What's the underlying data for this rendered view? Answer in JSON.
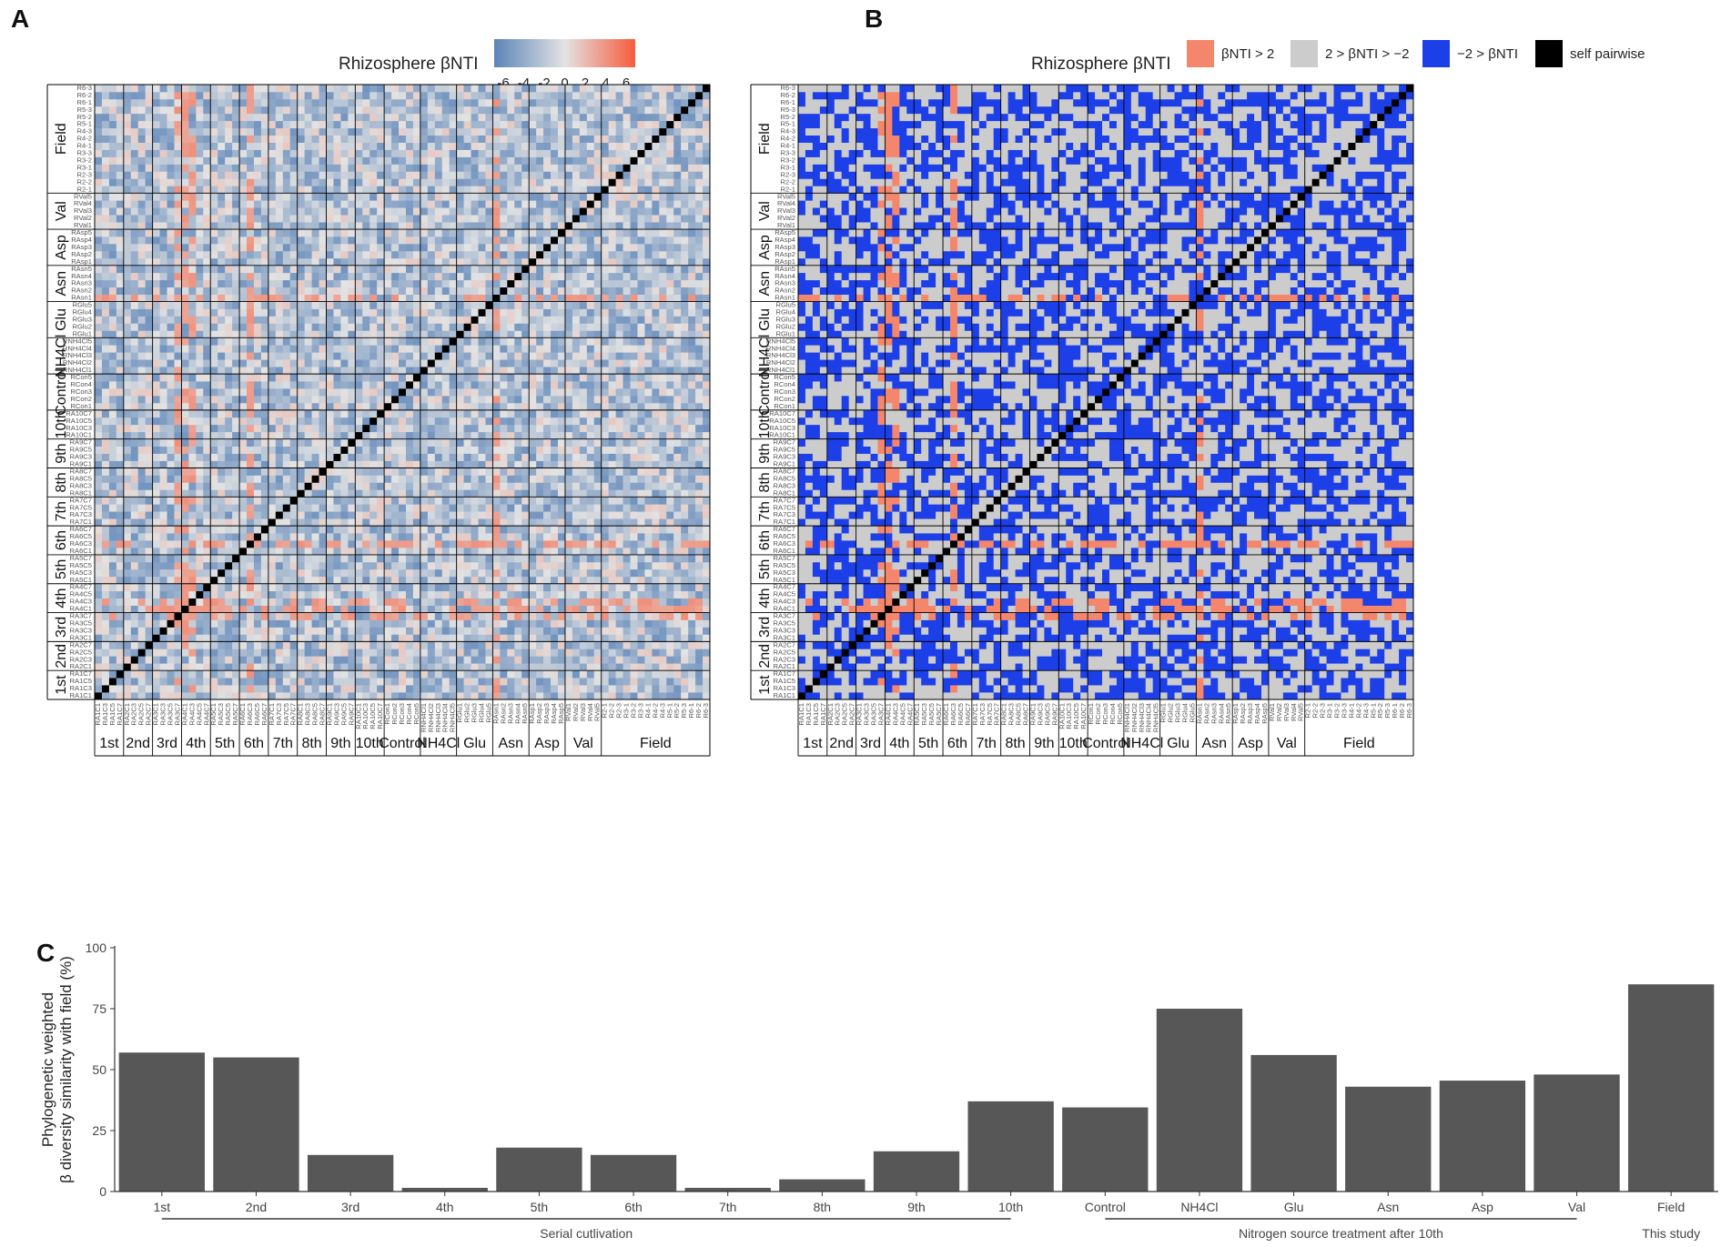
{
  "panels": {
    "a": {
      "letter": "A",
      "legend_title": "Rhizosphere βNTI",
      "legend_ticks": [
        "-6",
        "-4",
        "-2",
        "0",
        "2",
        "4",
        "6"
      ]
    },
    "b": {
      "letter": "B",
      "legend_title": "Rhizosphere βNTI",
      "legend_items": [
        {
          "label": "βNTI > 2",
          "color": "#f4866c"
        },
        {
          "label": "2 > βNTI > −2",
          "color": "#cccccc"
        },
        {
          "label": "−2 > βNTI",
          "color": "#1c3fe8"
        },
        {
          "label": "self pairwise",
          "color": "#000000"
        }
      ]
    },
    "c": {
      "letter": "C"
    }
  },
  "colors": {
    "low": "#5b84b8",
    "mid": "#e3e3e3",
    "high": "#f65c3c",
    "bar": "#575757",
    "self": "#000000"
  },
  "heatmap_groups": [
    {
      "label": "1st",
      "labels": [
        "RA1C1",
        "RA1C3",
        "RA1C5",
        "RA1C7"
      ]
    },
    {
      "label": "2nd",
      "labels": [
        "RA2C1",
        "RA2C3",
        "RA2C5",
        "RA2C7"
      ]
    },
    {
      "label": "3rd",
      "labels": [
        "RA3C1",
        "RA3C3",
        "RA3C5",
        "RA3C7"
      ]
    },
    {
      "label": "4th",
      "labels": [
        "RA4C1",
        "RA4C3",
        "RA4C5",
        "RA4C7"
      ]
    },
    {
      "label": "5th",
      "labels": [
        "RA5C1",
        "RA5C3",
        "RA5C5",
        "RA5C7"
      ]
    },
    {
      "label": "6th",
      "labels": [
        "RA6C1",
        "RA6C3",
        "RA6C5",
        "RA6C7"
      ]
    },
    {
      "label": "7th",
      "labels": [
        "RA7C1",
        "RA7C3",
        "RA7C5",
        "RA7C7"
      ]
    },
    {
      "label": "8th",
      "labels": [
        "RA8C1",
        "RA8C3",
        "RA8C5",
        "RA8C7"
      ]
    },
    {
      "label": "9th",
      "labels": [
        "RA9C1",
        "RA9C3",
        "RA9C5",
        "RA9C7"
      ]
    },
    {
      "label": "10th",
      "labels": [
        "RA10C1",
        "RA10C3",
        "RA10C5",
        "RA10C7"
      ]
    },
    {
      "label": "Control",
      "labels": [
        "RCon1",
        "RCon2",
        "RCon3",
        "RCon4",
        "RCon5"
      ]
    },
    {
      "label": "NH4Cl",
      "labels": [
        "RNH4Cl1",
        "RNH4Cl2",
        "RNH4Cl3",
        "RNH4Cl4",
        "RNH4Cl5"
      ]
    },
    {
      "label": "Glu",
      "labels": [
        "RGlu1",
        "RGlu2",
        "RGlu3",
        "RGlu4",
        "RGlu5"
      ]
    },
    {
      "label": "Asn",
      "labels": [
        "RAsn1",
        "RAsn2",
        "RAsn3",
        "RAsn4",
        "RAsn5"
      ]
    },
    {
      "label": "Asp",
      "labels": [
        "RAsp1",
        "RAsp2",
        "RAsp3",
        "RAsp4",
        "RAsp5"
      ]
    },
    {
      "label": "Val",
      "labels": [
        "RVal1",
        "RVal2",
        "RVal3",
        "RVal4",
        "RVal5"
      ]
    },
    {
      "label": "Field",
      "labels": [
        "R2-1",
        "R2-2",
        "R2-3",
        "R3-1",
        "R3-2",
        "R3-3",
        "R4-1",
        "R4-2",
        "R4-3",
        "R5-1",
        "R5-2",
        "R5-3",
        "R6-1",
        "R6-2",
        "R6-3"
      ]
    }
  ],
  "chart_data": [
    {
      "type": "heatmap",
      "panel": "A",
      "title": "Rhizosphere βNTI",
      "color_scale": {
        "min": -6,
        "max": 6,
        "ticks": [
          -6,
          -4,
          -2,
          0,
          2,
          4,
          6
        ]
      },
      "diagonal": "self pairwise (black)",
      "hotspots": [
        {
          "row": "RAsn1",
          "col": "RA6C3",
          "value": 6
        },
        {
          "row": "RA6C3",
          "col": "RAsn1",
          "value": 6
        },
        {
          "row": "RA4C1",
          "col": "RA4C3",
          "value": 3
        }
      ]
    },
    {
      "type": "heatmap",
      "panel": "B",
      "title": "Rhizosphere βNTI",
      "categories": [
        "βNTI > 2",
        "2 > βNTI > −2",
        "−2 > βNTI",
        "self pairwise"
      ]
    },
    {
      "type": "bar",
      "panel": "C",
      "categories": [
        "1st",
        "2nd",
        "3rd",
        "4th",
        "5th",
        "6th",
        "7th",
        "8th",
        "9th",
        "10th",
        "Control",
        "NH4Cl",
        "Glu",
        "Asn",
        "Asp",
        "Val",
        "Field"
      ],
      "values": [
        57,
        55,
        15,
        1.5,
        18,
        15,
        1.5,
        5,
        16.5,
        37,
        34.5,
        75,
        56,
        43,
        45.5,
        48,
        85
      ],
      "ylabel": "Phylogenetic weighted β diversity similarity with field (%)",
      "ylim": [
        0,
        100
      ],
      "yticks": [
        0,
        25,
        50,
        75,
        100
      ],
      "group_labels": [
        {
          "label": "Serial cutlivation",
          "from": "1st",
          "to": "10th"
        },
        {
          "label": "Nitrogen source treatment after 10th",
          "from": "Control",
          "to": "Val"
        },
        {
          "label": "This study",
          "from": "Field",
          "to": "Field"
        }
      ]
    }
  ]
}
